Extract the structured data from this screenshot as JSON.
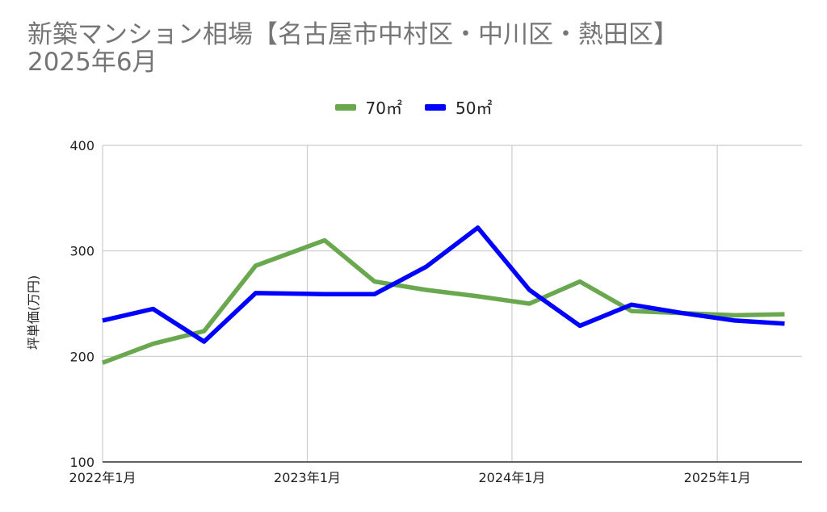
{
  "chart_data": {
    "type": "line",
    "title": "新築マンション相場【名古屋市中村区・中川区・熱田区】",
    "subtitle": "2025年6月",
    "ylabel": "坪単価(万円)",
    "xlabel": "",
    "ylim": [
      100,
      400
    ],
    "yticks": [
      100,
      200,
      300,
      400
    ],
    "xticks": [
      "2022年1月",
      "2023年1月",
      "2024年1月",
      "2025年1月"
    ],
    "x": [
      "2022-01",
      "2022-04",
      "2022-07",
      "2022-10",
      "2023-02",
      "2023-05",
      "2023-08",
      "2023-11",
      "2024-02",
      "2024-05",
      "2024-08",
      "2024-11",
      "2025-02",
      "2025-05"
    ],
    "legend_position": "top",
    "grid": true,
    "series": [
      {
        "name": "70㎡",
        "color": "#6aa84f",
        "values": [
          194,
          212,
          224,
          286,
          310,
          271,
          263,
          257,
          250,
          271,
          243,
          241,
          239,
          240
        ]
      },
      {
        "name": "50㎡",
        "color": "#0000ff",
        "values": [
          234,
          245,
          214,
          260,
          259,
          259,
          285,
          322,
          263,
          229,
          249,
          241,
          234,
          231
        ]
      }
    ]
  }
}
